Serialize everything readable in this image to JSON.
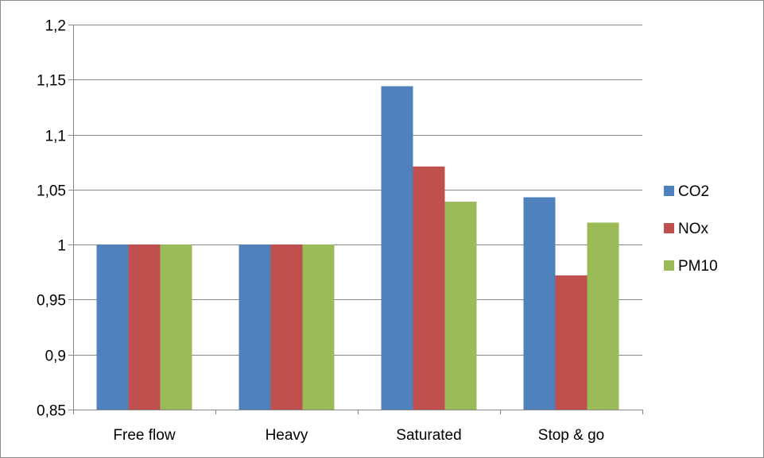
{
  "chart_data": {
    "type": "bar",
    "categories": [
      "Free flow",
      "Heavy",
      "Saturated",
      "Stop & go"
    ],
    "series": [
      {
        "name": "CO2",
        "color": "#4f81bd",
        "values": [
          1.0,
          1.0,
          1.144,
          1.043
        ]
      },
      {
        "name": "NOx",
        "color": "#c0504d",
        "values": [
          1.0,
          1.0,
          1.071,
          0.972
        ]
      },
      {
        "name": "PM10",
        "color": "#9bbb59",
        "values": [
          1.0,
          1.0,
          1.039,
          1.02
        ]
      }
    ],
    "ylim": [
      0.85,
      1.2
    ],
    "yticks": [
      "0,85",
      "0,9",
      "0,95",
      "1",
      "1,05",
      "1,1",
      "1,15",
      "1,2"
    ],
    "ytick_values": [
      0.85,
      0.9,
      0.95,
      1.0,
      1.05,
      1.1,
      1.15,
      1.2
    ],
    "grid": true,
    "legend": "right"
  }
}
